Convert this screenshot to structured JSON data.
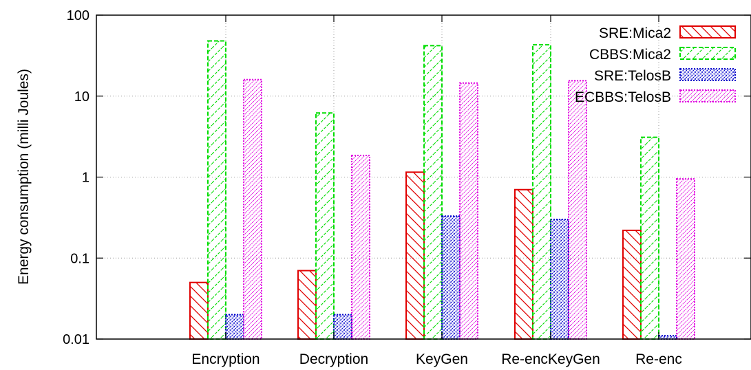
{
  "chart_data": {
    "type": "bar",
    "ylabel": "Energy consumption (milli Joules)",
    "yscale": "log",
    "ylim": [
      0.01,
      100
    ],
    "yticks": [
      "0.01",
      "0.1",
      "1",
      "10",
      "100"
    ],
    "grid": true,
    "legend_position": "top-right",
    "categories": [
      "Encryption",
      "Decryption",
      "KeyGen",
      "Re-encKeyGen",
      "Re-enc"
    ],
    "series": [
      {
        "name": "SRE:Mica2",
        "color": "#e00000",
        "style": "dashed",
        "pattern": "backslash-hatch",
        "values": [
          0.05,
          0.07,
          1.15,
          0.7,
          0.22
        ]
      },
      {
        "name": "CBBS:Mica2",
        "color": "#00dd00",
        "style": "dashed",
        "pattern": "slash-hatch",
        "values": [
          48,
          6.2,
          42,
          43,
          3.1
        ]
      },
      {
        "name": "SRE:TelosB",
        "color": "#0000cc",
        "style": "dotted",
        "pattern": "dense-hatch",
        "values": [
          0.02,
          0.02,
          0.33,
          0.3,
          0.011
        ]
      },
      {
        "name": "ECBBS:TelosB",
        "color": "#e000e0",
        "style": "dotted",
        "pattern": "fine-slash-hatch",
        "values": [
          16,
          1.85,
          14.5,
          15.5,
          0.95
        ]
      }
    ]
  }
}
